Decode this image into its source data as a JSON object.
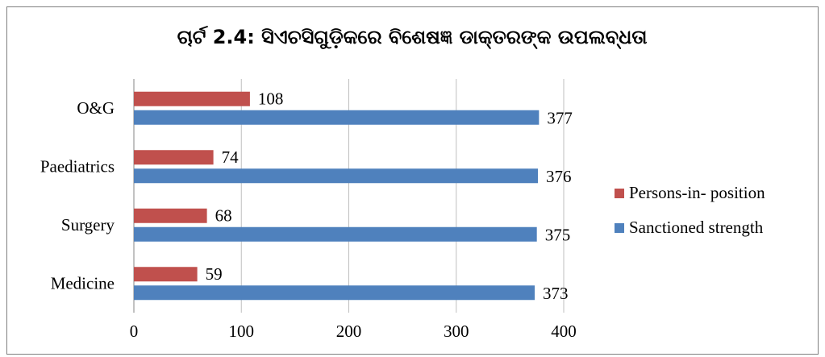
{
  "chart_data": {
    "type": "hbar",
    "title": "ଚାର୍ଟ 2.4: ସିଏଚସିଗୁଡ଼ିକରେ ବିଶେଷଜ୍ଞ ଡାକ୍ତରଙ୍କ ଉପଲବ୍ଧତା",
    "categories": [
      "Medicine",
      "Surgery",
      "Paediatrics",
      "O&G"
    ],
    "series": [
      {
        "name": "Persons-in- position",
        "color": "#c0504d",
        "values": [
          59,
          68,
          74,
          108
        ]
      },
      {
        "name": "Sanctioned strength",
        "color": "#4f81bd",
        "values": [
          373,
          375,
          376,
          377
        ]
      }
    ],
    "xlim": [
      0,
      400
    ],
    "xticks": [
      0,
      100,
      200,
      300,
      400
    ],
    "grid": true,
    "legend": "right"
  }
}
